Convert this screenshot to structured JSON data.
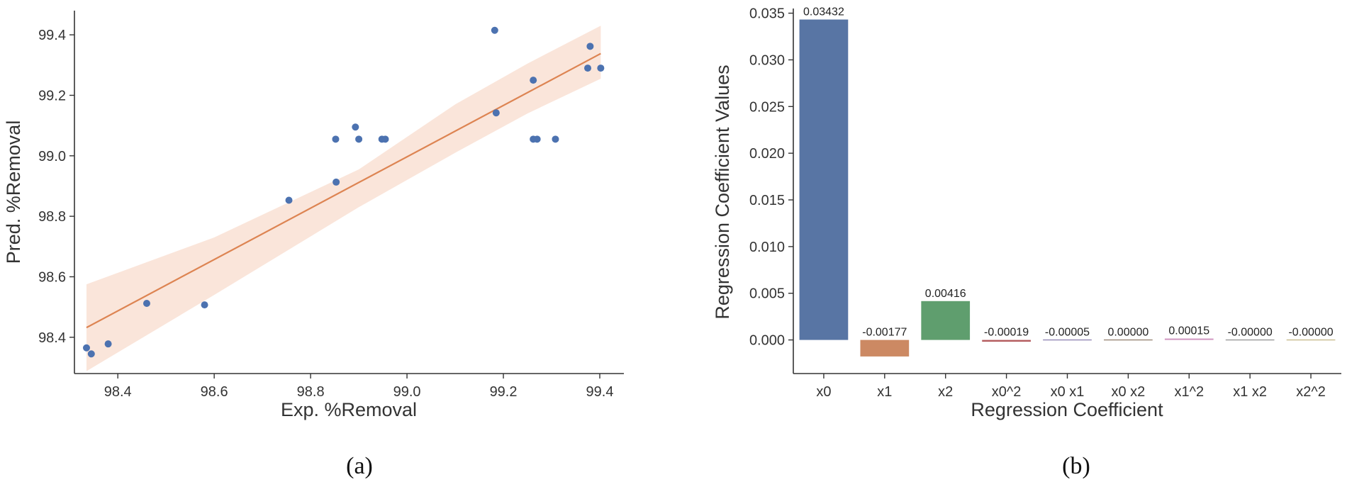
{
  "chart_data": [
    {
      "type": "scatter",
      "panel_label": "(a)",
      "xlabel": "Exp. %Removal",
      "ylabel": "Pred. %Removal",
      "xlim": [
        98.31,
        99.45
      ],
      "ylim": [
        98.28,
        99.48
      ],
      "xticks": [
        "98.4",
        "98.6",
        "98.8",
        "99.0",
        "99.2",
        "99.4"
      ],
      "yticks": [
        "98.4",
        "98.6",
        "98.8",
        "99.0",
        "99.2",
        "99.4"
      ],
      "colors": {
        "points": "#4c72b0",
        "fit": "#dd8452",
        "band": "#f9e1d3"
      },
      "points": [
        {
          "x": 98.335,
          "y": 98.365
        },
        {
          "x": 98.345,
          "y": 98.345
        },
        {
          "x": 98.38,
          "y": 98.378
        },
        {
          "x": 98.46,
          "y": 98.512
        },
        {
          "x": 98.58,
          "y": 98.507
        },
        {
          "x": 98.755,
          "y": 98.853
        },
        {
          "x": 98.853,
          "y": 98.913
        },
        {
          "x": 98.852,
          "y": 99.055
        },
        {
          "x": 98.893,
          "y": 99.095
        },
        {
          "x": 98.9,
          "y": 99.055
        },
        {
          "x": 98.948,
          "y": 99.055
        },
        {
          "x": 98.955,
          "y": 99.055
        },
        {
          "x": 99.182,
          "y": 99.415
        },
        {
          "x": 99.185,
          "y": 99.142
        },
        {
          "x": 99.262,
          "y": 99.25
        },
        {
          "x": 99.262,
          "y": 99.055
        },
        {
          "x": 99.27,
          "y": 99.055
        },
        {
          "x": 99.308,
          "y": 99.055
        },
        {
          "x": 99.375,
          "y": 99.29
        },
        {
          "x": 99.38,
          "y": 99.362
        },
        {
          "x": 99.402,
          "y": 99.29
        }
      ],
      "fit_line": {
        "x": [
          98.335,
          99.402
        ],
        "y": [
          98.432,
          99.338
        ]
      },
      "conf_band": {
        "x": [
          98.335,
          98.6,
          98.9,
          99.1,
          99.25,
          99.402
        ],
        "upper": [
          98.575,
          98.73,
          98.955,
          99.17,
          99.305,
          99.43
        ],
        "lower": [
          98.288,
          98.54,
          98.83,
          99.01,
          99.14,
          99.255
        ]
      }
    },
    {
      "type": "bar",
      "panel_label": "(b)",
      "xlabel": "Regression Coefficient",
      "ylabel": "Regression Coefficient Values",
      "ylim": [
        -0.0036,
        0.0355
      ],
      "yticks": [
        "0.000",
        "0.005",
        "0.010",
        "0.015",
        "0.020",
        "0.025",
        "0.030",
        "0.035"
      ],
      "categories": [
        "x0",
        "x1",
        "x2",
        "x0^2",
        "x0 x1",
        "x0 x2",
        "x1^2",
        "x1 x2",
        "x2^2"
      ],
      "values": [
        0.03432,
        -0.00177,
        0.00416,
        -0.00019,
        -5e-05,
        0.0,
        0.00015,
        -0.0,
        -0.0
      ],
      "labels": [
        "0.03432",
        "-0.00177",
        "0.00416",
        "-0.00019",
        "-0.00005",
        "0.00000",
        "0.00015",
        "-0.00000",
        "-0.00000"
      ],
      "colors": [
        "#5875a4",
        "#cc8963",
        "#5f9e6e",
        "#b55d60",
        "#857aab",
        "#8d7866",
        "#d095bf",
        "#8c8c8c",
        "#c1b37f"
      ]
    }
  ]
}
